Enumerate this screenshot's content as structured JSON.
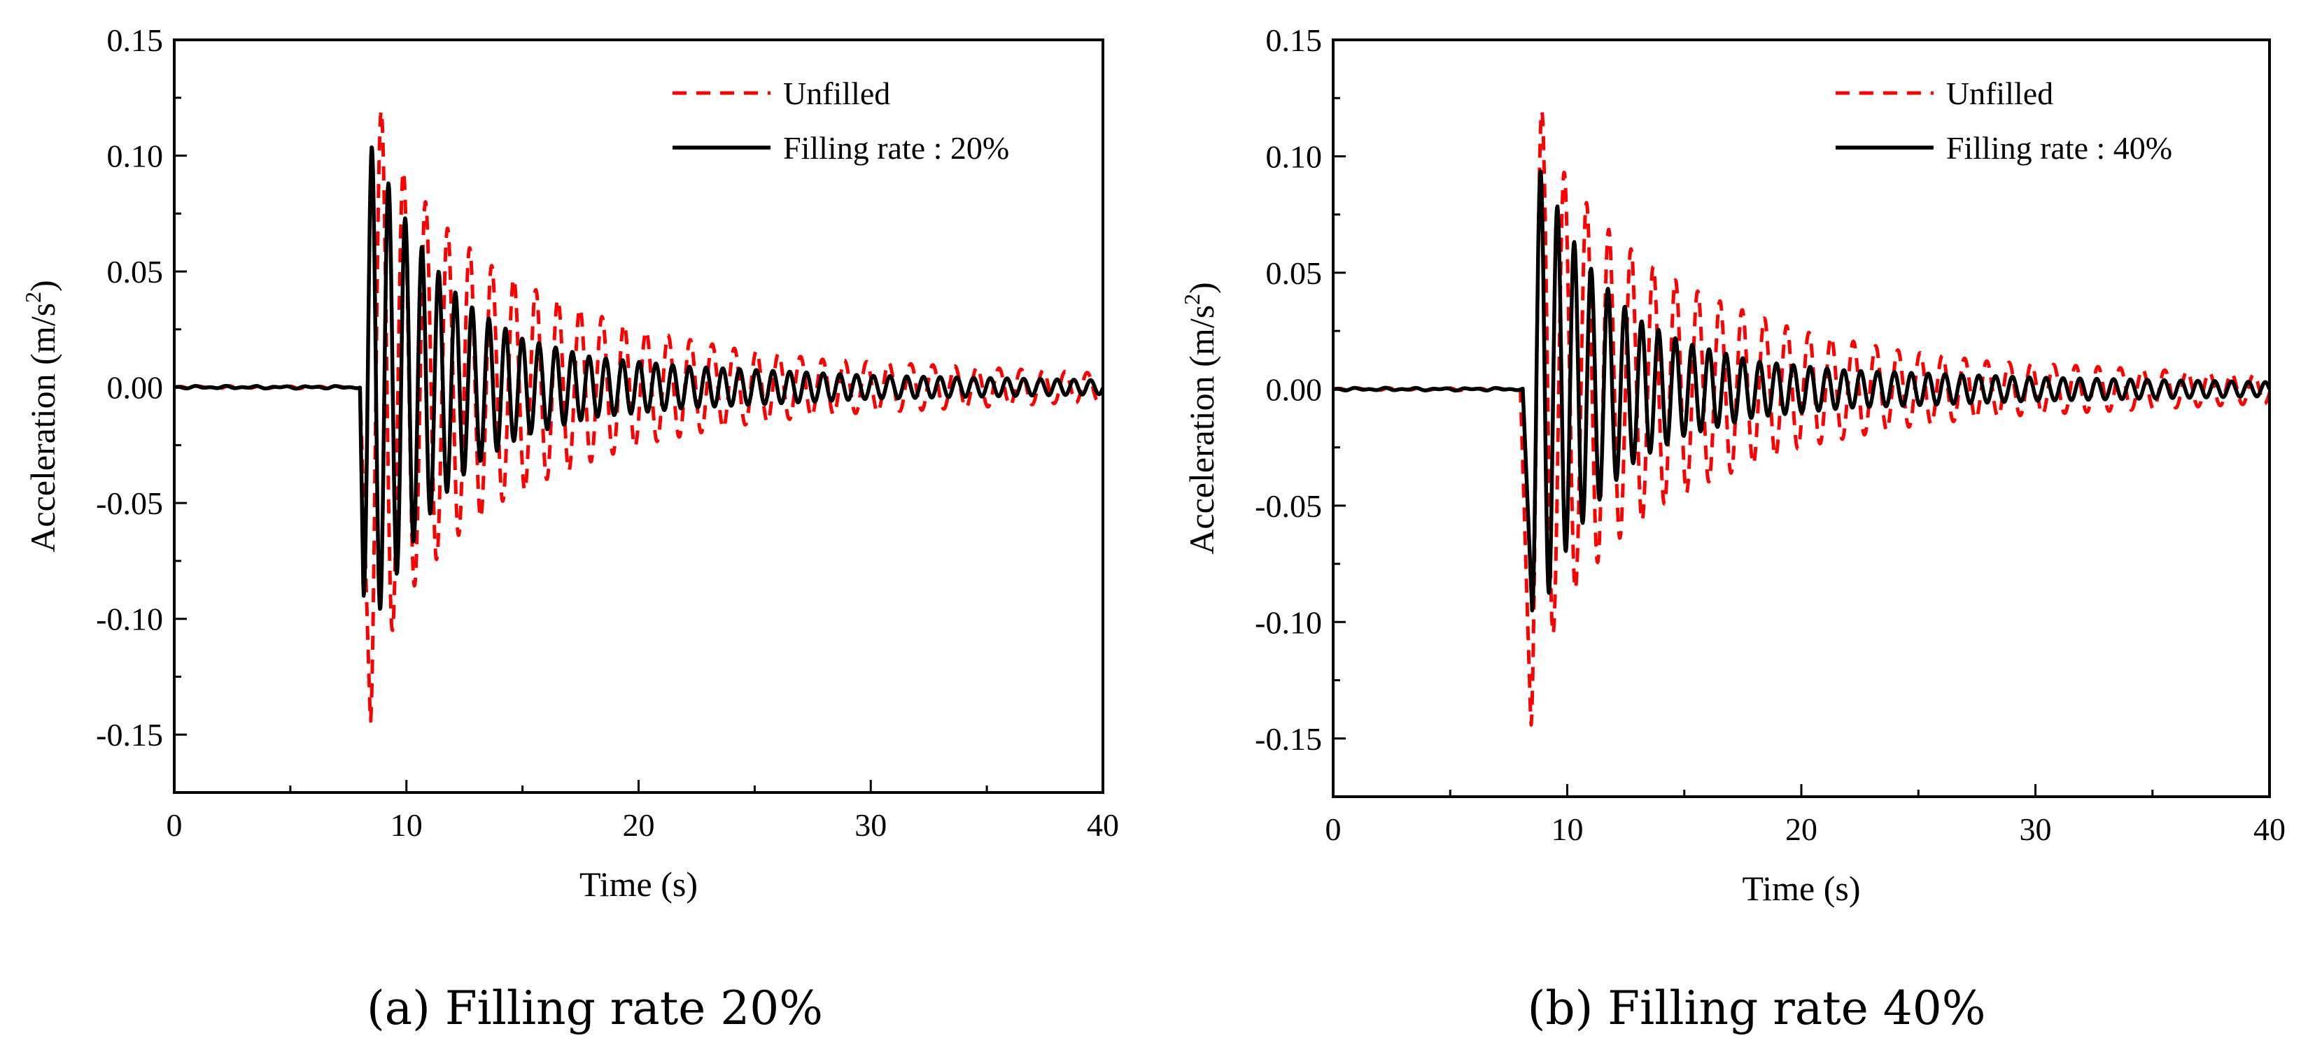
{
  "chart_data": [
    {
      "type": "line",
      "caption": "(a) Filling rate 20%",
      "xlabel": "Time (s)",
      "ylabel": "Acceleration (m/s",
      "ylabel_sup": "2",
      "ylabel_end": ")",
      "xlim": [
        0,
        40
      ],
      "ylim": [
        -0.175,
        0.15
      ],
      "xticks": [
        "0",
        "10",
        "20",
        "30",
        "40"
      ],
      "xtick_values": [
        0,
        10,
        20,
        30,
        40
      ],
      "yticks": [
        "0.15",
        "0.10",
        "0.05",
        "0.00",
        "-0.05",
        "-0.10",
        "-0.15"
      ],
      "ytick_values": [
        0.15,
        0.1,
        0.05,
        0.0,
        -0.05,
        -0.1,
        -0.15
      ],
      "legend_position": "top-right",
      "grid": false,
      "series": [
        {
          "name": "Unfilled",
          "color": "#ff0000",
          "style": "dashed",
          "onset_s": 8.0,
          "first_extremum_s": 8.45,
          "first_extremum": -0.145,
          "period_s": 0.95,
          "envelope": [
            [
              8.45,
              0.145
            ],
            [
              9.0,
              0.115
            ],
            [
              10,
              0.09
            ],
            [
              12,
              0.066
            ],
            [
              14,
              0.05
            ],
            [
              16,
              0.04
            ],
            [
              18,
              0.032
            ],
            [
              20,
              0.025
            ],
            [
              24,
              0.017
            ],
            [
              28,
              0.012
            ],
            [
              32,
              0.01
            ],
            [
              40,
              0.006
            ]
          ]
        },
        {
          "name": "Filling rate : 20%",
          "color": "#000000",
          "style": "solid",
          "onset_s": 8.0,
          "first_extremum_s": 8.15,
          "first_extremum": -0.09,
          "period_s": 0.72,
          "envelope": [
            [
              8.15,
              0.09
            ],
            [
              8.5,
              0.104
            ],
            [
              9,
              0.093
            ],
            [
              10,
              0.072
            ],
            [
              11,
              0.055
            ],
            [
              12,
              0.042
            ],
            [
              13,
              0.033
            ],
            [
              15,
              0.021
            ],
            [
              18,
              0.013
            ],
            [
              22,
              0.009
            ],
            [
              26,
              0.007
            ],
            [
              30,
              0.005
            ],
            [
              40,
              0.003
            ]
          ]
        }
      ]
    },
    {
      "type": "line",
      "caption": "(b) Filling rate 40%",
      "xlabel": "Time (s)",
      "ylabel": "Acceleration (m/s",
      "ylabel_sup": "2",
      "ylabel_end": ")",
      "xlim": [
        0,
        40
      ],
      "ylim": [
        -0.175,
        0.15
      ],
      "xticks": [
        "0",
        "10",
        "20",
        "30",
        "40"
      ],
      "xtick_values": [
        0,
        10,
        20,
        30,
        40
      ],
      "yticks": [
        "0.15",
        "0.10",
        "0.05",
        "0.00",
        "-0.05",
        "-0.10",
        "-0.15"
      ],
      "ytick_values": [
        0.15,
        0.1,
        0.05,
        0.0,
        -0.05,
        -0.1,
        -0.15
      ],
      "legend_position": "top-right",
      "grid": false,
      "series": [
        {
          "name": "Unfilled",
          "color": "#ff0000",
          "style": "dashed",
          "onset_s": 8.0,
          "first_extremum_s": 8.45,
          "first_extremum": -0.145,
          "period_s": 0.95,
          "envelope": [
            [
              8.45,
              0.145
            ],
            [
              9.0,
              0.115
            ],
            [
              10,
              0.09
            ],
            [
              12,
              0.066
            ],
            [
              14,
              0.05
            ],
            [
              16,
              0.04
            ],
            [
              18,
              0.032
            ],
            [
              20,
              0.025
            ],
            [
              24,
              0.017
            ],
            [
              28,
              0.012
            ],
            [
              32,
              0.01
            ],
            [
              40,
              0.006
            ]
          ]
        },
        {
          "name": "Filling rate : 40%",
          "color": "#000000",
          "style": "solid",
          "onset_s": 8.1,
          "first_extremum_s": 8.5,
          "first_extremum": -0.095,
          "period_s": 0.72,
          "envelope": [
            [
              8.5,
              0.095
            ],
            [
              9,
              0.093
            ],
            [
              10,
              0.068
            ],
            [
              11,
              0.052
            ],
            [
              12,
              0.04
            ],
            [
              13,
              0.03
            ],
            [
              15,
              0.02
            ],
            [
              18,
              0.012
            ],
            [
              22,
              0.008
            ],
            [
              30,
              0.005
            ],
            [
              40,
              0.003
            ]
          ]
        }
      ]
    }
  ]
}
